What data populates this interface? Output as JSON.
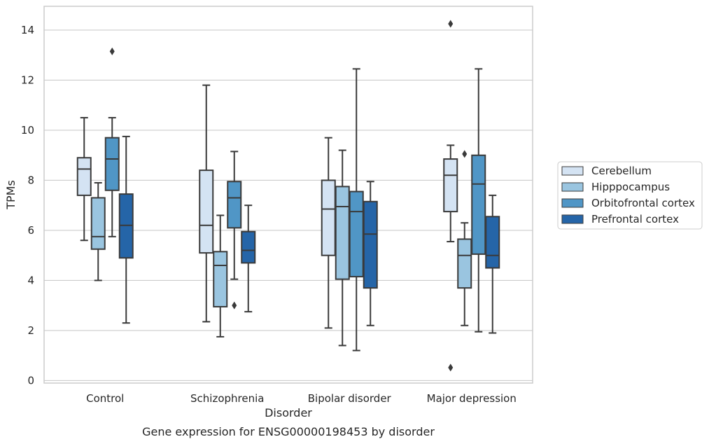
{
  "chart_data": {
    "type": "boxplot",
    "title": "",
    "caption": "Gene expression for ENSG00000198453 by disorder",
    "xlabel": "Disorder",
    "ylabel": "TPMs",
    "ylim": [
      -0.1,
      14.95
    ],
    "yticks": [
      0,
      2,
      4,
      6,
      8,
      10,
      12,
      14
    ],
    "grid": "horizontal",
    "legend_position": "right",
    "categories": [
      "Control",
      "Schizophrenia",
      "Bipolar disorder",
      "Major depression"
    ],
    "series": [
      {
        "name": "Cerebellum",
        "color": "#d4e3f3",
        "boxes": [
          {
            "whisker_low": 5.6,
            "q1": 7.4,
            "median": 8.45,
            "q3": 8.9,
            "whisker_high": 10.5,
            "outliers": []
          },
          {
            "whisker_low": 2.35,
            "q1": 5.1,
            "median": 6.2,
            "q3": 8.4,
            "whisker_high": 11.8,
            "outliers": []
          },
          {
            "whisker_low": 2.1,
            "q1": 5.0,
            "median": 6.85,
            "q3": 8.0,
            "whisker_high": 9.7,
            "outliers": []
          },
          {
            "whisker_low": 5.55,
            "q1": 6.75,
            "median": 8.2,
            "q3": 8.85,
            "whisker_high": 9.4,
            "outliers": [
              14.25,
              0.52
            ]
          }
        ]
      },
      {
        "name": "Hipppocampus",
        "color": "#9ac5e0",
        "boxes": [
          {
            "whisker_low": 4.0,
            "q1": 5.25,
            "median": 5.75,
            "q3": 7.3,
            "whisker_high": 7.9,
            "outliers": []
          },
          {
            "whisker_low": 1.75,
            "q1": 2.95,
            "median": 4.6,
            "q3": 5.15,
            "whisker_high": 6.6,
            "outliers": []
          },
          {
            "whisker_low": 1.4,
            "q1": 4.05,
            "median": 6.95,
            "q3": 7.75,
            "whisker_high": 9.2,
            "outliers": []
          },
          {
            "whisker_low": 2.2,
            "q1": 3.7,
            "median": 5.0,
            "q3": 5.65,
            "whisker_high": 6.3,
            "outliers": [
              9.05
            ]
          }
        ]
      },
      {
        "name": "Orbitofrontal cortex",
        "color": "#5096c6",
        "boxes": [
          {
            "whisker_low": 5.75,
            "q1": 7.6,
            "median": 8.85,
            "q3": 9.7,
            "whisker_high": 10.5,
            "outliers": [
              13.15
            ]
          },
          {
            "whisker_low": 4.05,
            "q1": 6.1,
            "median": 7.3,
            "q3": 7.95,
            "whisker_high": 9.15,
            "outliers": [
              3.0
            ]
          },
          {
            "whisker_low": 1.2,
            "q1": 4.15,
            "median": 6.75,
            "q3": 7.55,
            "whisker_high": 12.45,
            "outliers": []
          },
          {
            "whisker_low": 1.95,
            "q1": 5.05,
            "median": 7.85,
            "q3": 9.0,
            "whisker_high": 12.45,
            "outliers": []
          }
        ]
      },
      {
        "name": "Prefrontal cortex",
        "color": "#2565a8",
        "boxes": [
          {
            "whisker_low": 2.3,
            "q1": 4.9,
            "median": 6.2,
            "q3": 7.45,
            "whisker_high": 9.75,
            "outliers": []
          },
          {
            "whisker_low": 2.75,
            "q1": 4.7,
            "median": 5.2,
            "q3": 5.95,
            "whisker_high": 7.0,
            "outliers": []
          },
          {
            "whisker_low": 2.2,
            "q1": 3.7,
            "median": 5.85,
            "q3": 7.15,
            "whisker_high": 7.95,
            "outliers": []
          },
          {
            "whisker_low": 1.9,
            "q1": 4.5,
            "median": 5.0,
            "q3": 6.55,
            "whisker_high": 7.4,
            "outliers": []
          }
        ]
      }
    ]
  }
}
